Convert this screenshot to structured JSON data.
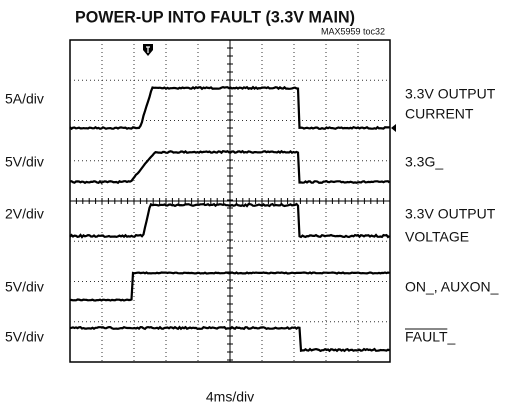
{
  "title": "POWER-UP INTO FAULT (3.3V MAIN)",
  "figure_id": "MAX5959 toc32",
  "left_labels": [
    "5A/div",
    "5V/div",
    "2V/div",
    "5V/div",
    "5V/div"
  ],
  "right_labels": [
    [
      "3.3V OUTPUT",
      "CURRENT"
    ],
    [
      "3.3G_"
    ],
    [
      "3.3V OUTPUT",
      "VOLTAGE"
    ],
    [
      "ON_, AUXON_"
    ],
    [
      "FAULT_"
    ]
  ],
  "x_label": "4ms/div"
}
